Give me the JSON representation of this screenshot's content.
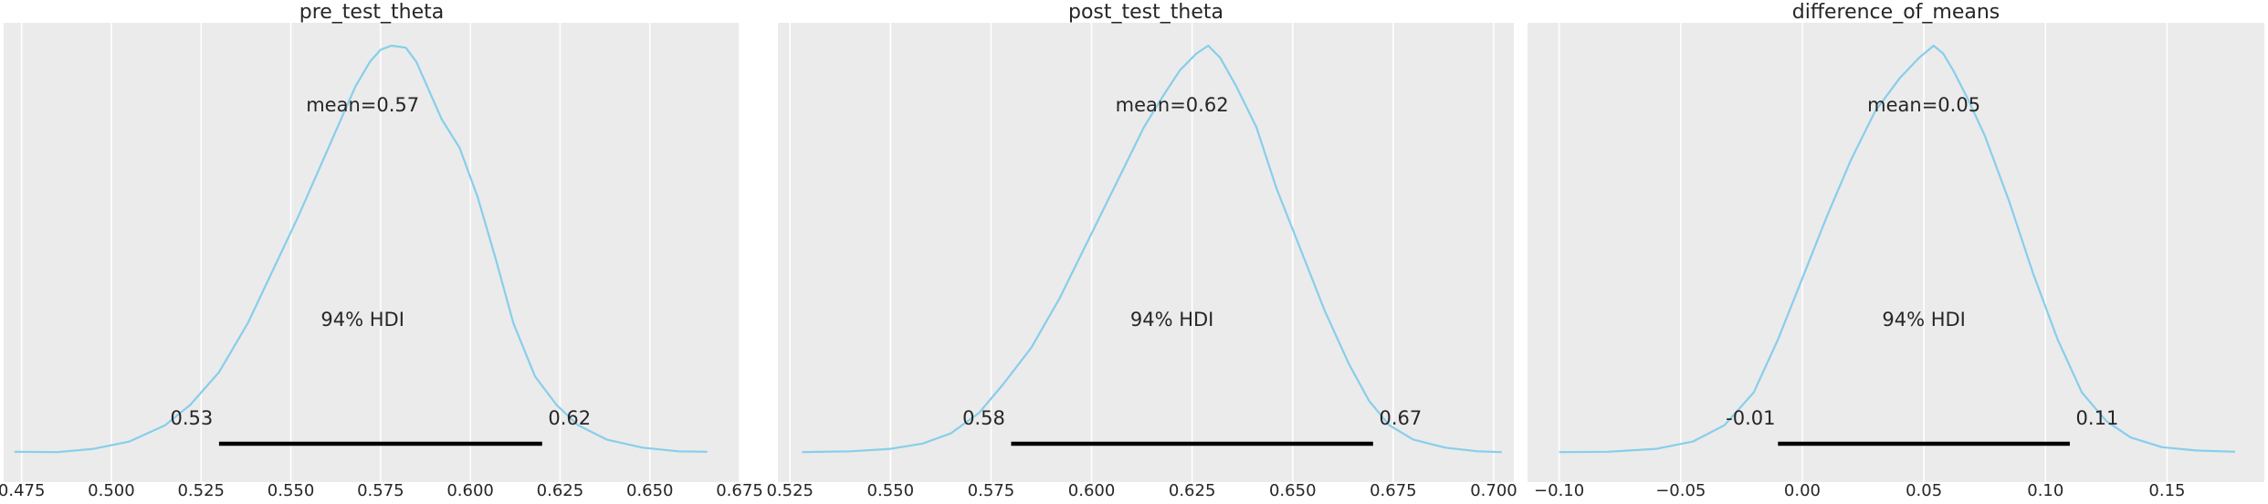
{
  "style": {
    "panel_bg": "#ebebeb",
    "grid_color": "#ffffff",
    "curve_color": "#87ceeb",
    "hdi_color": "#000000",
    "text_color": "#262626"
  },
  "chart_data": [
    {
      "type": "area",
      "title": "pre_test_theta",
      "grid": true,
      "xlim": [
        0.47,
        0.675
      ],
      "xticks": [
        0.475,
        0.5,
        0.525,
        0.55,
        0.575,
        0.6,
        0.625,
        0.65,
        0.675
      ],
      "xtick_labels": [
        "0.475",
        "0.500",
        "0.525",
        "0.550",
        "0.575",
        "0.600",
        "0.625",
        "0.650",
        "0.675"
      ],
      "series": [
        {
          "x": [
            0.473,
            0.485,
            0.495,
            0.505,
            0.515,
            0.522,
            0.53,
            0.538,
            0.545,
            0.552,
            0.558,
            0.563,
            0.568,
            0.572,
            0.575,
            0.578,
            0.582,
            0.585,
            0.588,
            0.592,
            0.597,
            0.602,
            0.607,
            0.612,
            0.618,
            0.624,
            0.63,
            0.638,
            0.648,
            0.658,
            0.666
          ],
          "y": [
            0.005,
            0.004,
            0.012,
            0.03,
            0.07,
            0.12,
            0.2,
            0.32,
            0.45,
            0.58,
            0.7,
            0.8,
            0.9,
            0.96,
            0.99,
            1.0,
            0.995,
            0.96,
            0.9,
            0.82,
            0.75,
            0.63,
            0.48,
            0.32,
            0.19,
            0.12,
            0.07,
            0.035,
            0.015,
            0.006,
            0.005
          ]
        }
      ],
      "mean": 0.57,
      "mean_label": "mean=0.57",
      "hdi_label": "94% HDI",
      "hdi": [
        0.53,
        0.62
      ],
      "hdi_low_label": "0.53",
      "hdi_high_label": "0.62"
    },
    {
      "type": "area",
      "title": "post_test_theta",
      "grid": true,
      "xlim": [
        0.522,
        0.705
      ],
      "xticks": [
        0.525,
        0.55,
        0.575,
        0.6,
        0.625,
        0.65,
        0.675,
        0.7
      ],
      "xtick_labels": [
        "0.525",
        "0.550",
        "0.575",
        "0.600",
        "0.625",
        "0.650",
        "0.675",
        "0.700"
      ],
      "series": [
        {
          "x": [
            0.528,
            0.54,
            0.55,
            0.558,
            0.565,
            0.572,
            0.578,
            0.585,
            0.592,
            0.598,
            0.603,
            0.608,
            0.613,
            0.618,
            0.622,
            0.626,
            0.629,
            0.632,
            0.636,
            0.641,
            0.646,
            0.652,
            0.658,
            0.664,
            0.669,
            0.674,
            0.68,
            0.688,
            0.696,
            0.702
          ],
          "y": [
            0.004,
            0.006,
            0.012,
            0.025,
            0.05,
            0.1,
            0.17,
            0.26,
            0.38,
            0.5,
            0.6,
            0.7,
            0.8,
            0.88,
            0.94,
            0.98,
            1.0,
            0.97,
            0.9,
            0.8,
            0.65,
            0.5,
            0.35,
            0.22,
            0.13,
            0.07,
            0.035,
            0.015,
            0.006,
            0.004
          ]
        }
      ],
      "mean": 0.62,
      "mean_label": "mean=0.62",
      "hdi_label": "94% HDI",
      "hdi": [
        0.58,
        0.67
      ],
      "hdi_low_label": "0.58",
      "hdi_high_label": "0.67"
    },
    {
      "type": "area",
      "title": "difference_of_means",
      "grid": true,
      "xlim": [
        -0.113,
        0.19
      ],
      "xticks": [
        -0.1,
        -0.05,
        0.0,
        0.05,
        0.1,
        0.15
      ],
      "xtick_labels": [
        "−0.10",
        "−0.05",
        "0.00",
        "0.05",
        "0.10",
        "0.15"
      ],
      "series": [
        {
          "x": [
            -0.1,
            -0.08,
            -0.06,
            -0.045,
            -0.032,
            -0.02,
            -0.01,
            0.0,
            0.01,
            0.02,
            0.03,
            0.04,
            0.048,
            0.054,
            0.058,
            0.062,
            0.068,
            0.075,
            0.085,
            0.095,
            0.105,
            0.115,
            0.125,
            0.135,
            0.148,
            0.162,
            0.178
          ],
          "y": [
            0.004,
            0.005,
            0.012,
            0.03,
            0.07,
            0.15,
            0.28,
            0.43,
            0.58,
            0.72,
            0.84,
            0.92,
            0.97,
            1.0,
            0.98,
            0.94,
            0.87,
            0.78,
            0.62,
            0.44,
            0.28,
            0.15,
            0.08,
            0.04,
            0.016,
            0.008,
            0.005
          ]
        }
      ],
      "mean": 0.05,
      "mean_label": "mean=0.05",
      "hdi_label": "94% HDI",
      "hdi": [
        -0.01,
        0.11
      ],
      "hdi_low_label": "-0.01",
      "hdi_high_label": "0.11"
    }
  ]
}
